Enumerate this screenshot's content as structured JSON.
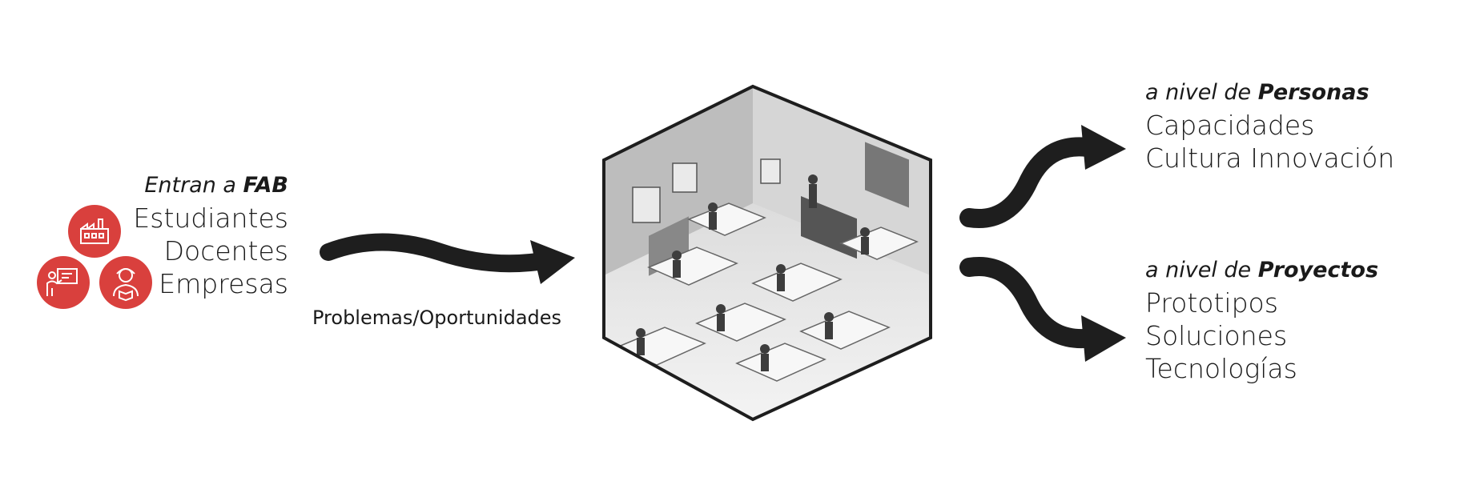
{
  "inputs": {
    "title_prefix": "Entran a ",
    "title_bold": "FAB",
    "items": [
      "Estudiantes",
      "Docentes",
      "Empresas"
    ],
    "icons": [
      "factory-icon",
      "teacher-icon",
      "student-icon"
    ],
    "icon_color": "#d9403d"
  },
  "flow_caption": "Problemas/Oportunidades",
  "center": {
    "image": "fab-lab-workshop-illustration"
  },
  "outputs": [
    {
      "title_prefix": "a nivel de ",
      "title_bold": "Personas",
      "items": [
        "Capacidades",
        "Cultura Innovación"
      ]
    },
    {
      "title_prefix": "a nivel de ",
      "title_bold": "Proyectos",
      "items": [
        "Prototipos",
        "Soluciones",
        "Tecnologías"
      ]
    }
  ],
  "colors": {
    "arrow": "#1e1e1e",
    "accent": "#d9403d"
  }
}
